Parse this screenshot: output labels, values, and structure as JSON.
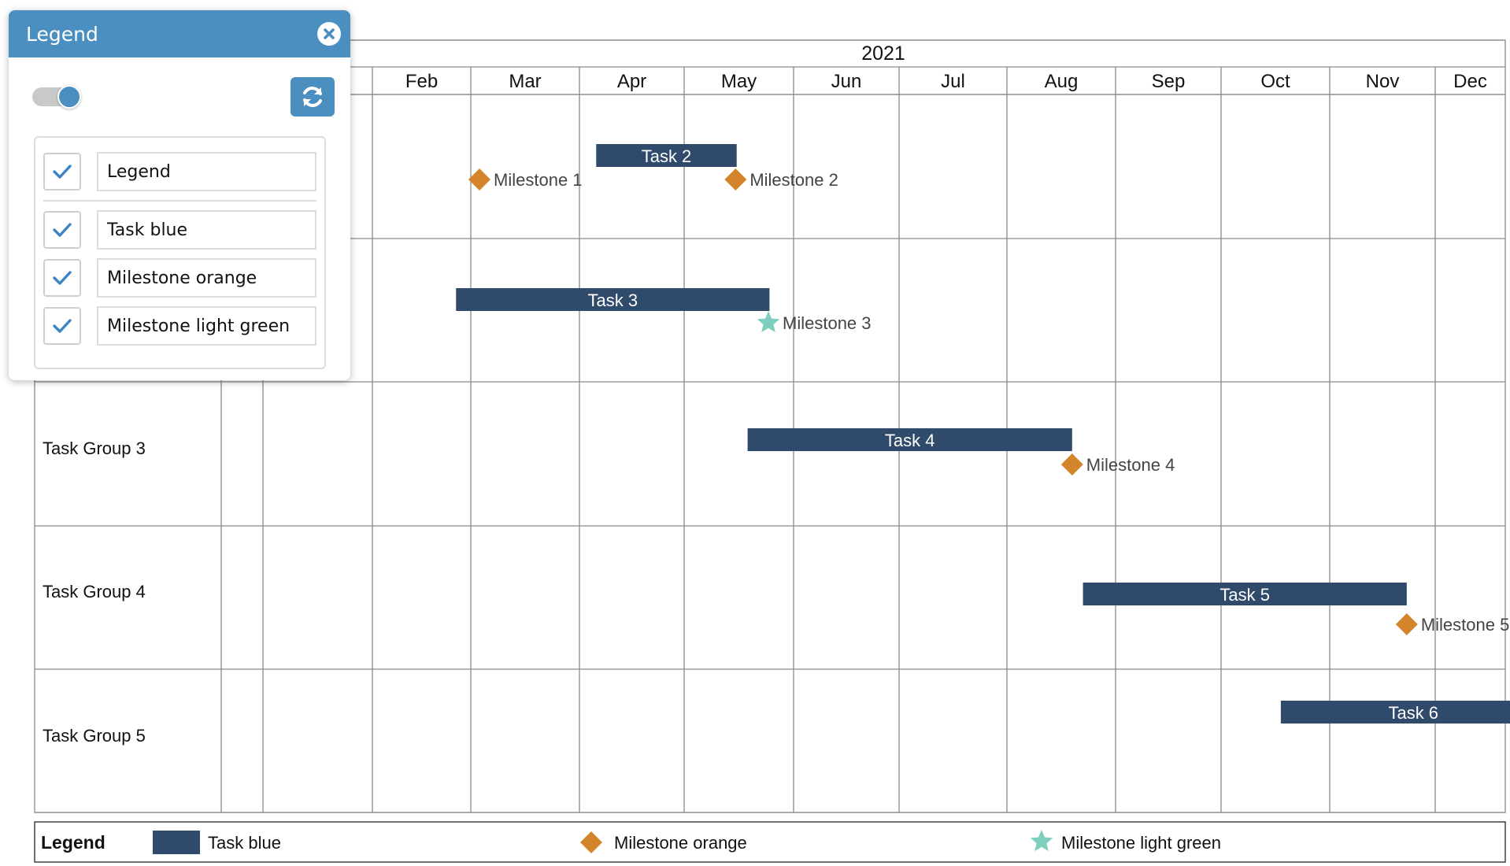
{
  "chart": {
    "year": "2021",
    "months": [
      "Feb",
      "Mar",
      "Apr",
      "May",
      "Jun",
      "Jul",
      "Aug",
      "Sep",
      "Oct",
      "Nov",
      "Dec"
    ],
    "groups": [
      "Task Group 3",
      "Task Group 4",
      "Task Group 5"
    ],
    "tasks": [
      {
        "label": "Task 2",
        "start_month": 3.16,
        "end_month": 4.48
      },
      {
        "label": "Task 3",
        "start_month": 1.85,
        "end_month": 4.78
      },
      {
        "label": "Task 4",
        "start_month": 4.58,
        "end_month": 7.6
      },
      {
        "label": "Task 5",
        "start_month": 7.7,
        "end_month": 10.73
      },
      {
        "label": "Task 6",
        "start_month": 9.55,
        "end_month": 12.58
      }
    ],
    "milestones": [
      {
        "label": "Milestone 1",
        "month": 2.08,
        "shape": "diamond"
      },
      {
        "label": "Milestone 2",
        "month": 4.47,
        "shape": "diamond"
      },
      {
        "label": "Milestone 3",
        "month": 4.77,
        "shape": "star"
      },
      {
        "label": "Milestone 4",
        "month": 7.6,
        "shape": "diamond"
      },
      {
        "label": "Milestone 5",
        "month": 10.73,
        "shape": "diamond"
      }
    ],
    "colors": {
      "task": "#2f4a6a",
      "milestone_orange": "#d4852b",
      "milestone_green": "#7ecfbe",
      "grid": "#8a8a8a",
      "panel_accent": "#4a8fbf"
    }
  },
  "footer_legend": {
    "title": "Legend",
    "items": [
      {
        "label": "Task blue",
        "icon": "task-swatch"
      },
      {
        "label": "Milestone orange",
        "icon": "diamond-icon"
      },
      {
        "label": "Milestone light green",
        "icon": "star-icon"
      }
    ]
  },
  "legend_panel": {
    "title": "Legend",
    "close_icon": "close-icon",
    "toggle_on": true,
    "refresh_icon": "refresh-icon",
    "items": [
      {
        "label": "Legend",
        "checked": true
      },
      {
        "label": "Task blue",
        "checked": true
      },
      {
        "label": "Milestone orange",
        "checked": true
      },
      {
        "label": "Milestone light green",
        "checked": true
      }
    ]
  }
}
